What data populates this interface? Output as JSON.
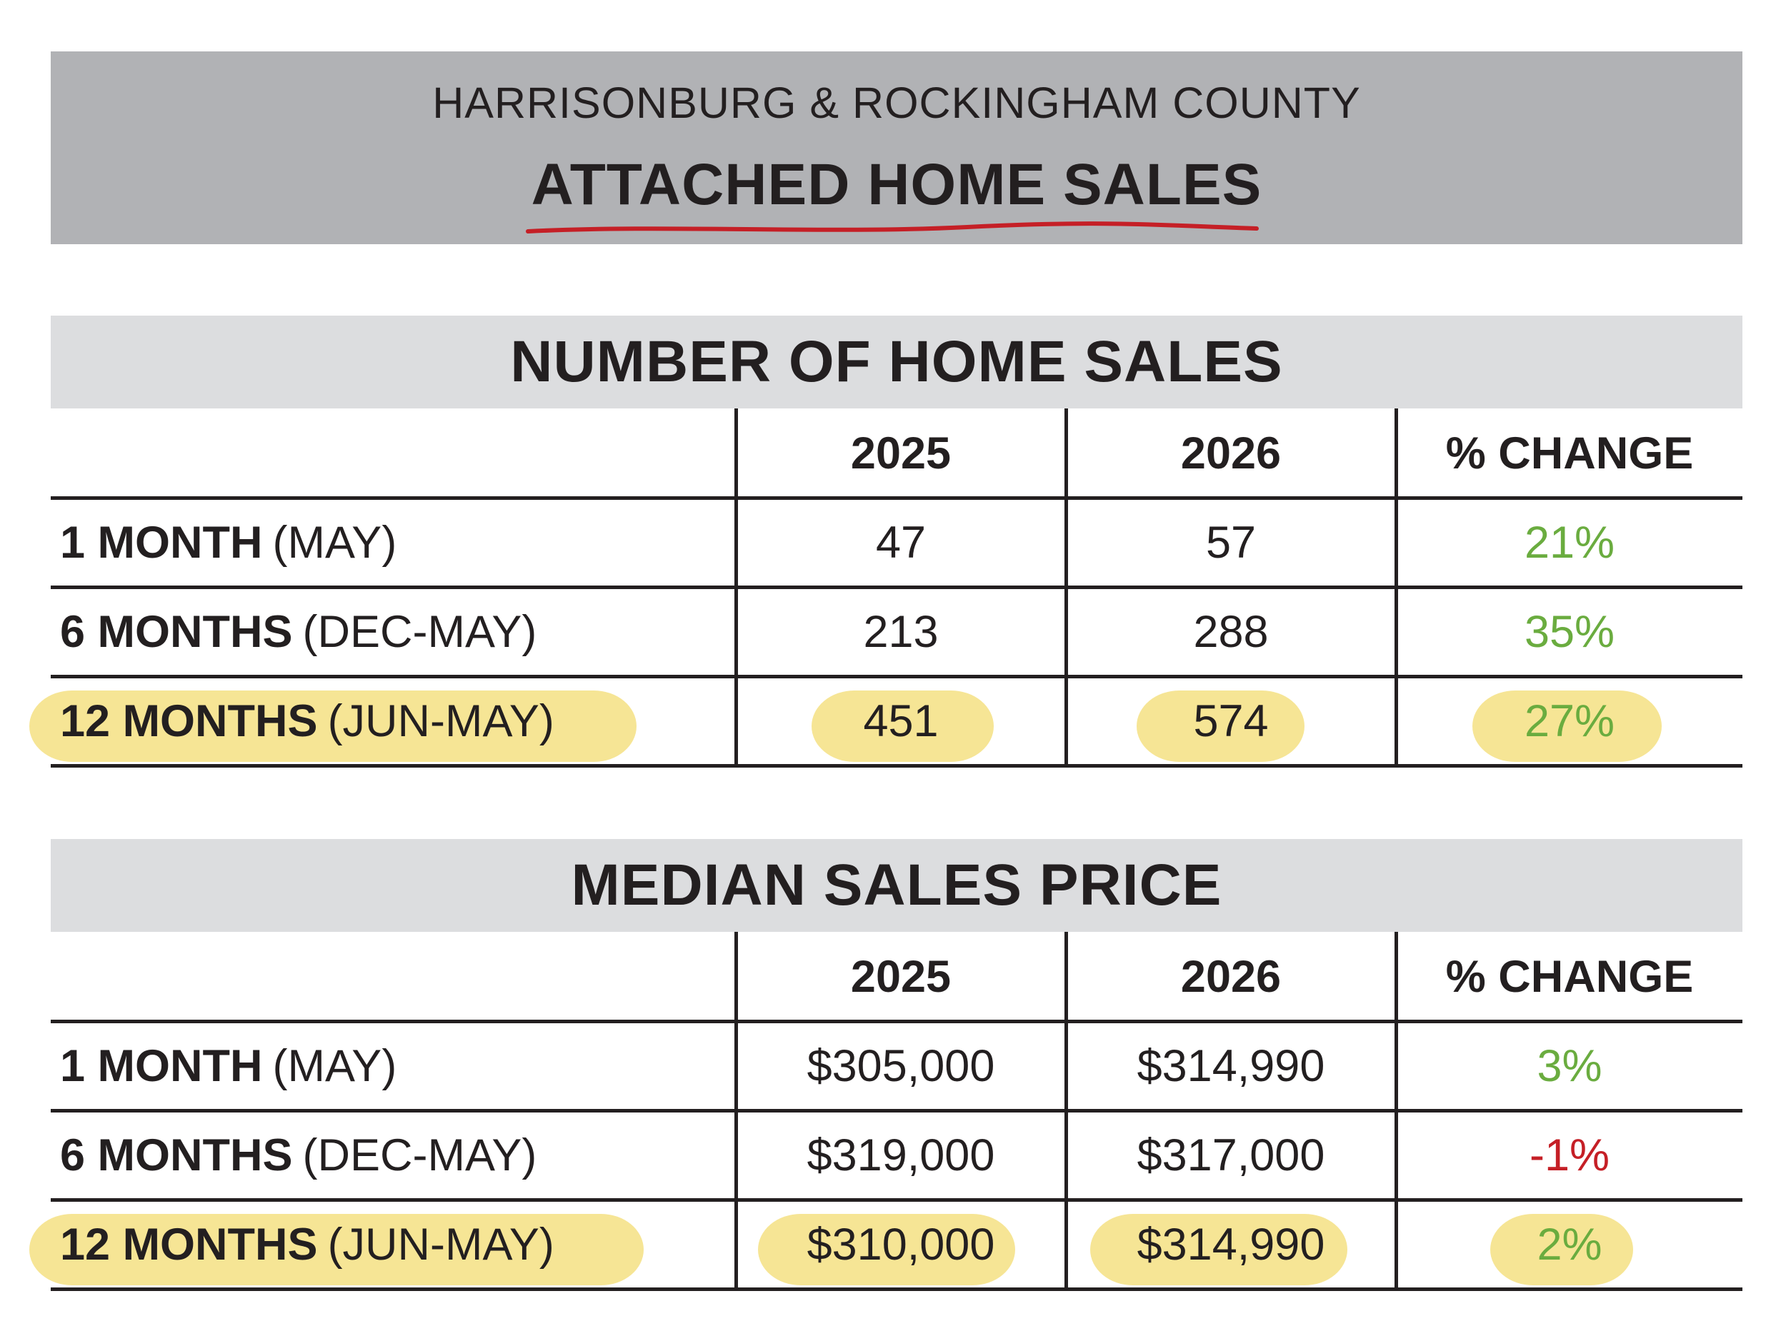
{
  "header": {
    "subtitle": "HARRISONBURG & ROCKINGHAM COUNTY",
    "title": "ATTACHED HOME SALES"
  },
  "colors": {
    "header_bg": "#b1b2b5",
    "section_bg": "#dcdddf",
    "highlight": "#f6e595",
    "positive": "#6aac3f",
    "negative": "#c51f26",
    "underline": "#c51f26"
  },
  "chart_data": [
    {
      "type": "table",
      "title": "NUMBER OF HOME SALES",
      "columns": [
        "",
        "2025",
        "2026",
        "% CHANGE"
      ],
      "rows": [
        {
          "period": "1 MONTH",
          "range": "(MAY)",
          "v2025": "47",
          "v2026": "57",
          "change": "21%",
          "highlighted": false
        },
        {
          "period": "6 MONTHS",
          "range": "(DEC-MAY)",
          "v2025": "213",
          "v2026": "288",
          "change": "35%",
          "highlighted": false
        },
        {
          "period": "12 MONTHS",
          "range": "(JUN-MAY)",
          "v2025": "451",
          "v2026": "574",
          "change": "27%",
          "highlighted": true
        }
      ]
    },
    {
      "type": "table",
      "title": "MEDIAN SALES PRICE",
      "columns": [
        "",
        "2025",
        "2026",
        "% CHANGE"
      ],
      "rows": [
        {
          "period": "1 MONTH",
          "range": "(MAY)",
          "v2025": "$305,000",
          "v2026": "$314,990",
          "change": "3%",
          "highlighted": false
        },
        {
          "period": "6 MONTHS",
          "range": "(DEC-MAY)",
          "v2025": "$319,000",
          "v2026": "$317,000",
          "change": "-1%",
          "highlighted": false
        },
        {
          "period": "12 MONTHS",
          "range": "(JUN-MAY)",
          "v2025": "$310,000",
          "v2026": "$314,990",
          "change": "2%",
          "highlighted": true
        }
      ]
    }
  ]
}
